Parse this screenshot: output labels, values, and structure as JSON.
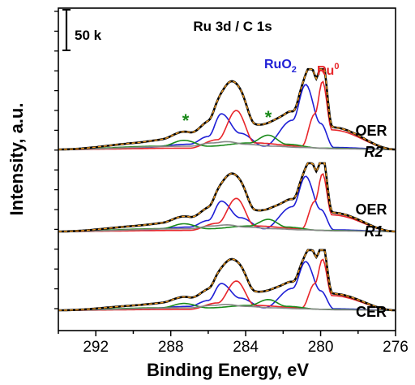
{
  "chart_data": {
    "type": "line",
    "title": "Ru 3d / C 1s",
    "xlabel": "Binding Energy, eV",
    "ylabel": "Intensity, a.u.",
    "xlim": [
      294,
      276
    ],
    "x_reversed": true,
    "x_ticks": [
      "292",
      "288",
      "284",
      "280",
      "276"
    ],
    "x_tick_values": [
      292,
      288,
      284,
      280,
      276
    ],
    "scale_bar_label": "50 k",
    "grid": false,
    "peak_labels": [
      {
        "text": "RuO",
        "sub": "2",
        "color": "#1f1fd6"
      },
      {
        "text": "Ru",
        "sup": "0",
        "color": "#e8262a"
      }
    ],
    "satellite_marker": {
      "text": "*",
      "color": "#1a8a1a",
      "x": [
        287.4,
        282.7
      ]
    },
    "panels": [
      {
        "label_line1": "OER",
        "label_line2": "R2",
        "offset": 2
      },
      {
        "label_line1": "OER",
        "label_line2": "R1",
        "offset": 1
      },
      {
        "label_line1": "CER",
        "label_line2": "",
        "offset": 0
      }
    ],
    "series": [
      {
        "name": "",
        "color": "#1f1fd6",
        "x": [
          294,
          290,
          287,
          286,
          285.3,
          284.3,
          283,
          281.5,
          280.8,
          280.0,
          279.3,
          276
        ],
        "values": [
          0,
          0.02,
          0.08,
          0.2,
          0.55,
          0.25,
          0.05,
          0.45,
          1.0,
          0.4,
          0.03,
          0
        ]
      },
      {
        "name": "",
        "color": "#e8262a",
        "x": [
          294,
          287,
          285.5,
          284.5,
          283.5,
          281,
          280.3,
          279.9,
          279.4,
          276
        ],
        "values": [
          0,
          0.02,
          0.15,
          0.6,
          0.1,
          0.05,
          0.55,
          1.05,
          0.3,
          0
        ]
      },
      {
        "name": "",
        "color": "#1a8a1a",
        "x": [
          294,
          288.5,
          287.3,
          286,
          283.8,
          282.8,
          281.8,
          280,
          276
        ],
        "values": [
          0,
          0.05,
          0.14,
          0.05,
          0.1,
          0.22,
          0.08,
          0.02,
          0
        ]
      },
      {
        "name": "",
        "color": "#888888",
        "x": [
          294,
          287,
          285.8,
          285,
          284,
          282.5,
          281,
          279,
          276
        ],
        "values": [
          0,
          0.05,
          0.1,
          0.12,
          0.08,
          0.05,
          0.03,
          0.01,
          0
        ]
      }
    ]
  }
}
